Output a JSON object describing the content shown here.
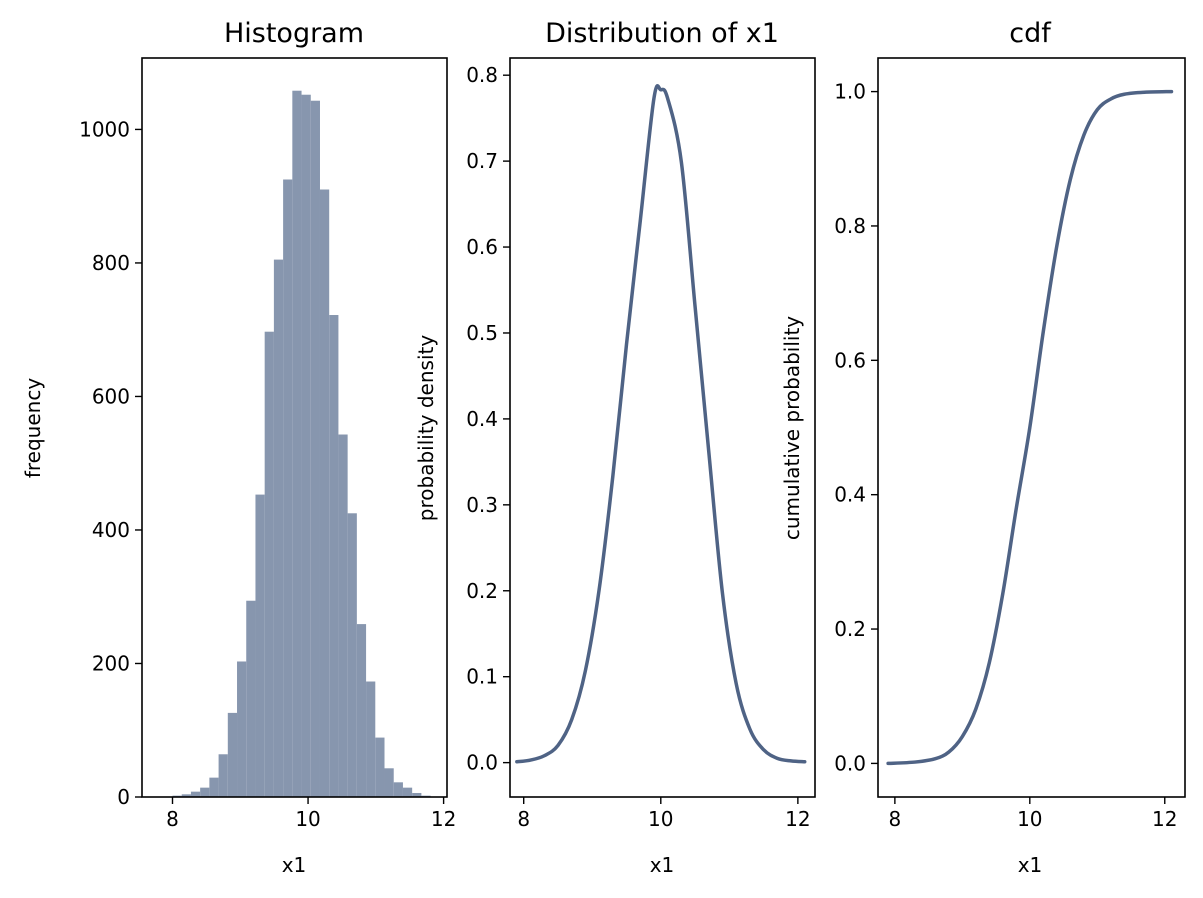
{
  "chart_data": [
    {
      "type": "bar",
      "title": "Histogram",
      "xlabel": "x1",
      "ylabel": "frequency",
      "bar_color": "#8796ae",
      "xlim": [
        7.55,
        12.05
      ],
      "ylim": [
        0,
        1107
      ],
      "xticks": [
        8,
        10,
        12
      ],
      "yticks": [
        0,
        200,
        400,
        600,
        800,
        1000
      ],
      "bin_edges": [
        8.0,
        8.136,
        8.272,
        8.408,
        8.544,
        8.68,
        8.816,
        8.952,
        9.088,
        9.224,
        9.36,
        9.496,
        9.632,
        9.768,
        9.904,
        10.04,
        10.176,
        10.312,
        10.448,
        10.584,
        10.72,
        10.856,
        10.992,
        11.128,
        11.264,
        11.4,
        11.536,
        11.672,
        11.808
      ],
      "values": [
        2,
        4,
        8,
        14,
        29,
        64,
        126,
        203,
        294,
        453,
        697,
        805,
        925,
        1058,
        1052,
        1043,
        910,
        722,
        543,
        425,
        259,
        173,
        89,
        43,
        22,
        14,
        6,
        2
      ]
    },
    {
      "type": "line",
      "title": "Distribution of x1",
      "xlabel": "x1",
      "ylabel": "probability density",
      "line_color": "#4f6385",
      "xlim": [
        7.8,
        12.25
      ],
      "ylim": [
        -0.04,
        0.82
      ],
      "xticks": [
        8,
        10,
        12
      ],
      "yticks": [
        0.0,
        0.1,
        0.2,
        0.3,
        0.4,
        0.5,
        0.6,
        0.7,
        0.8
      ],
      "ytick_labels": [
        "0.0",
        "0.1",
        "0.2",
        "0.3",
        "0.4",
        "0.5",
        "0.6",
        "0.7",
        "0.8"
      ],
      "x": [
        7.9,
        8.1,
        8.3,
        8.5,
        8.7,
        8.9,
        9.1,
        9.3,
        9.5,
        9.7,
        9.9,
        10.0,
        10.1,
        10.3,
        10.5,
        10.7,
        10.9,
        11.1,
        11.3,
        11.5,
        11.7,
        11.9,
        12.1
      ],
      "y": [
        0.001,
        0.003,
        0.008,
        0.02,
        0.05,
        0.107,
        0.201,
        0.333,
        0.487,
        0.63,
        0.773,
        0.783,
        0.773,
        0.699,
        0.531,
        0.362,
        0.197,
        0.092,
        0.039,
        0.015,
        0.005,
        0.002,
        0.001
      ]
    },
    {
      "type": "line",
      "title": "cdf",
      "xlabel": "x1",
      "ylabel": "cumulative probability",
      "line_color": "#4f6385",
      "xlim": [
        7.75,
        12.3
      ],
      "ylim": [
        -0.05,
        1.05
      ],
      "xticks": [
        8,
        10,
        12
      ],
      "yticks": [
        0.0,
        0.2,
        0.4,
        0.6,
        0.8,
        1.0
      ],
      "ytick_labels": [
        "0.0",
        "0.2",
        "0.4",
        "0.6",
        "0.8",
        "1.0"
      ],
      "x": [
        7.9,
        8.3,
        8.6,
        8.8,
        9.0,
        9.2,
        9.4,
        9.6,
        9.8,
        10.0,
        10.2,
        10.4,
        10.6,
        10.8,
        11.0,
        11.2,
        11.4,
        11.7,
        12.1
      ],
      "y": [
        0.0,
        0.002,
        0.007,
        0.017,
        0.04,
        0.081,
        0.15,
        0.253,
        0.38,
        0.5,
        0.643,
        0.77,
        0.869,
        0.935,
        0.973,
        0.989,
        0.996,
        0.999,
        1.0
      ]
    }
  ]
}
